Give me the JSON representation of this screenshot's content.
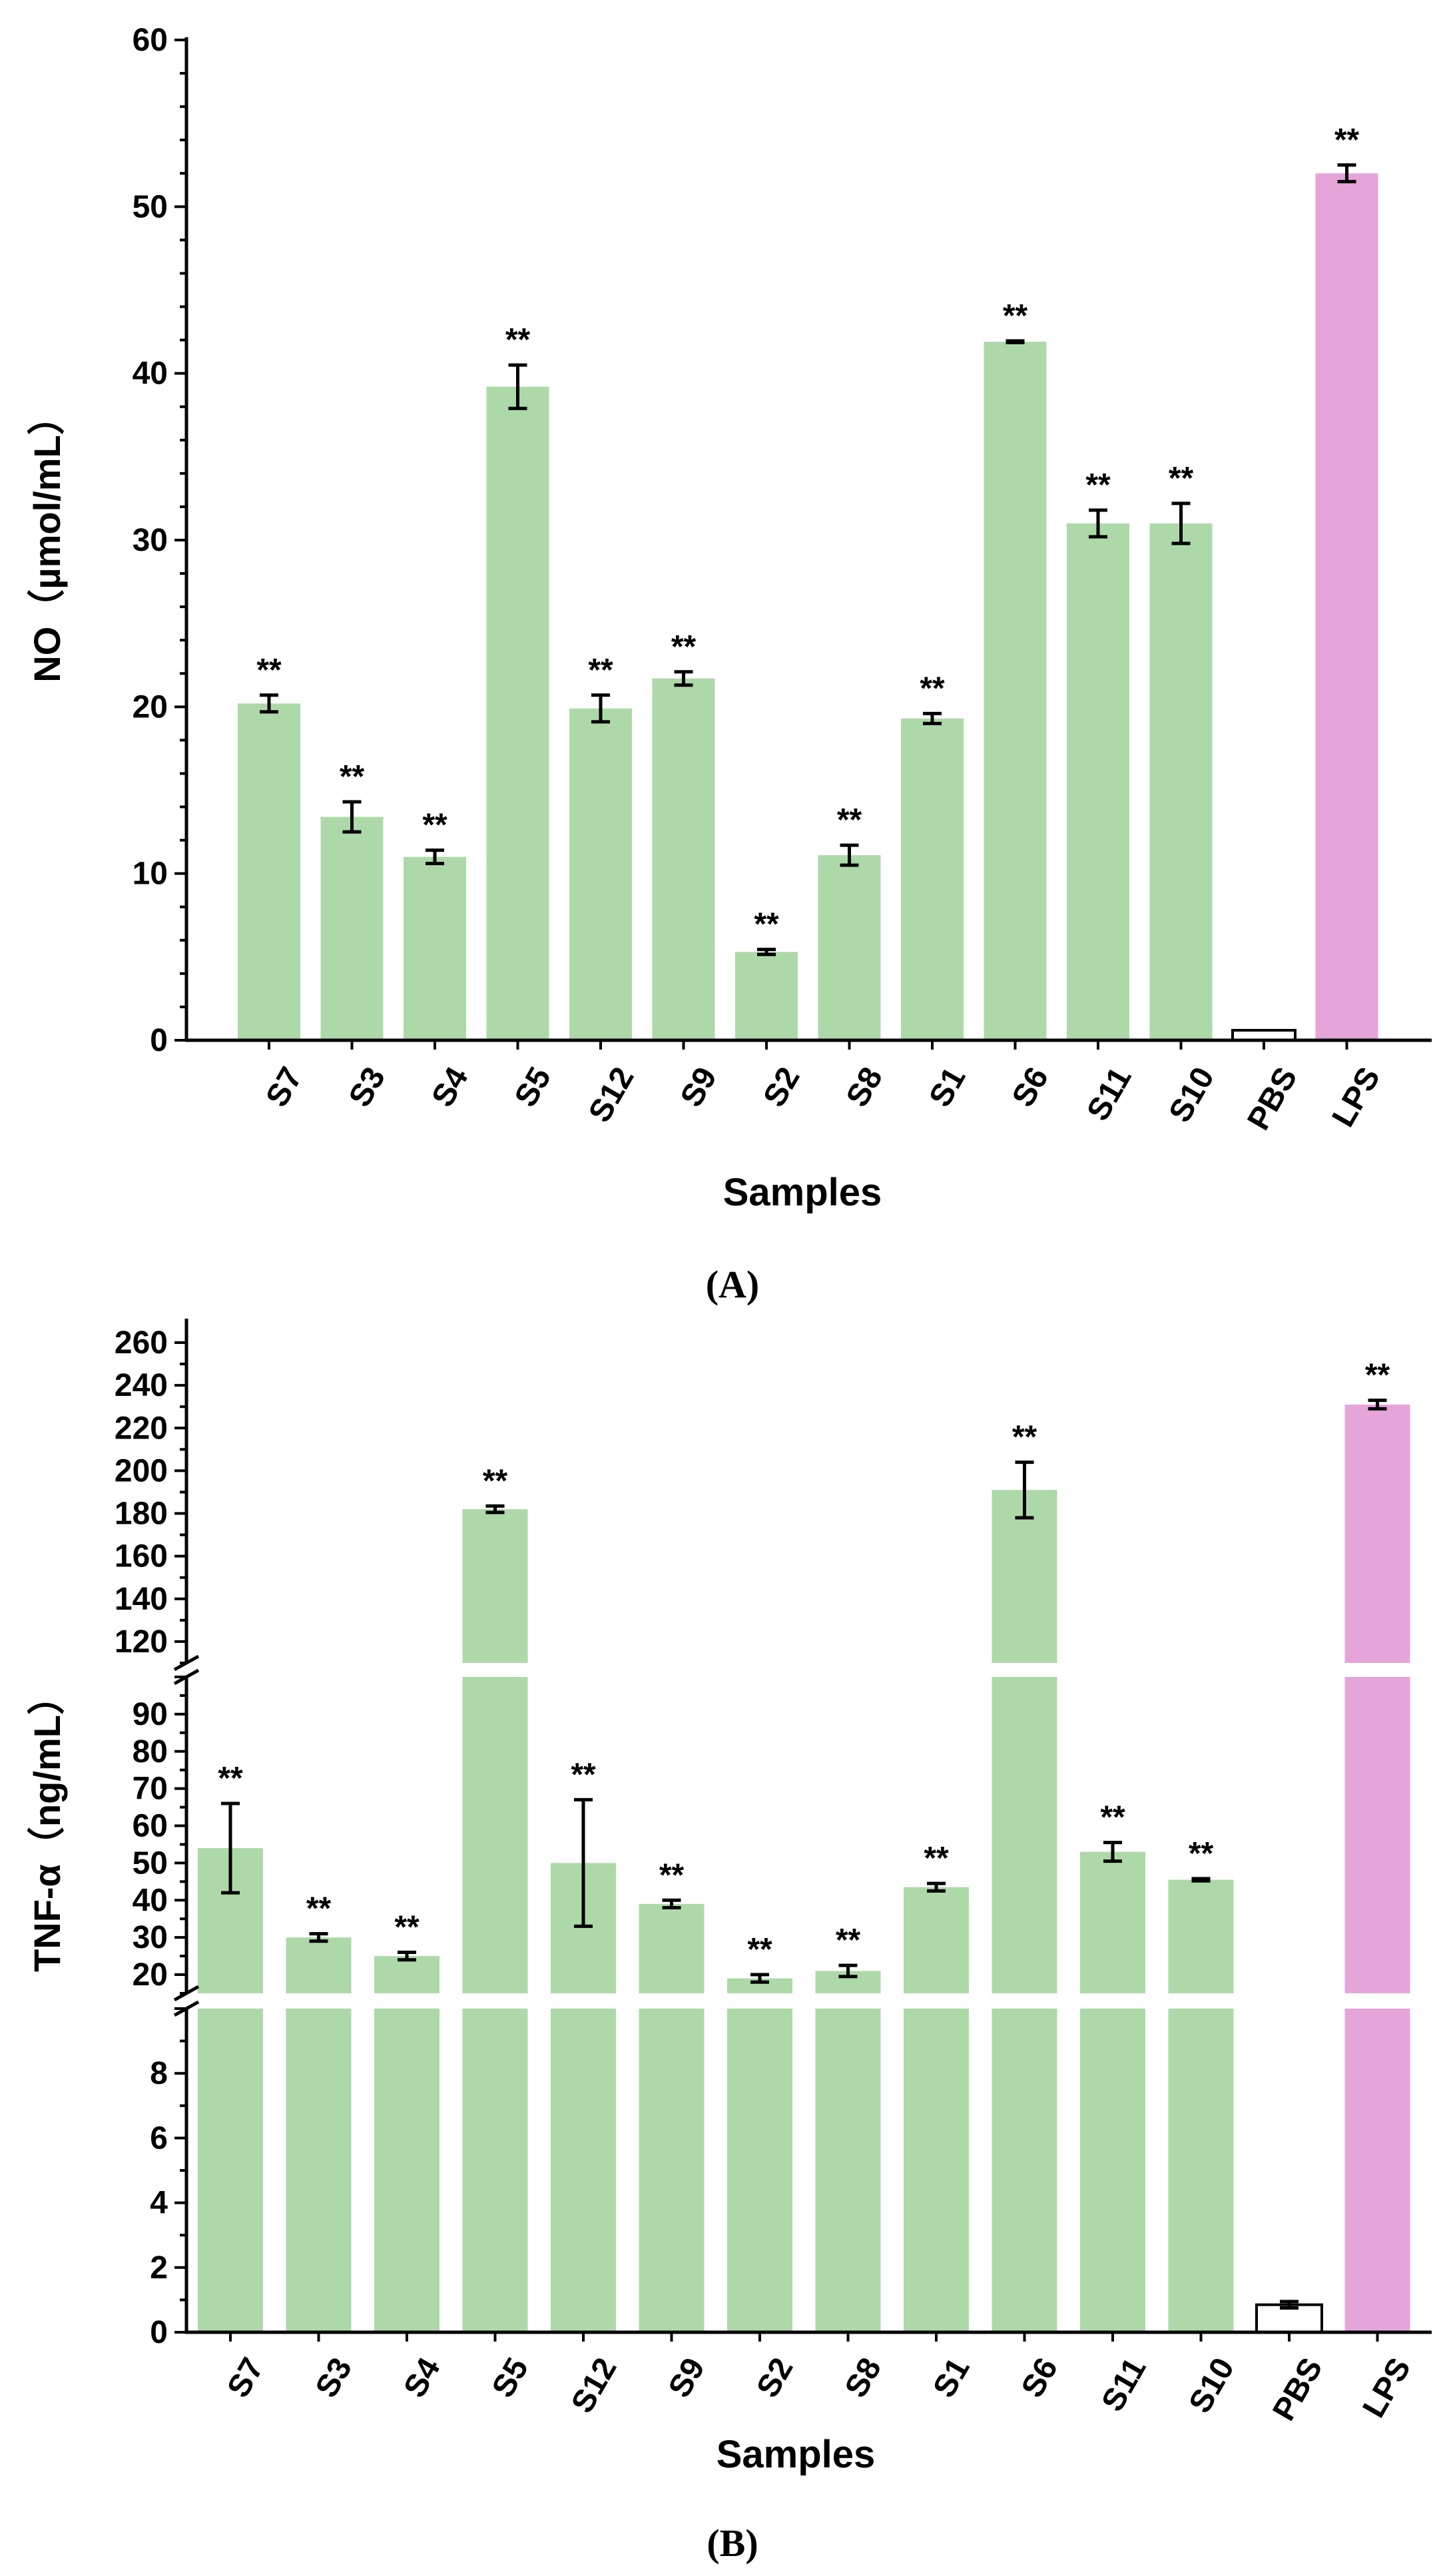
{
  "chart_data": [
    {
      "type": "bar",
      "panel_label": "(A)",
      "xlabel": "Samples",
      "ylabel": "NO（µmol/mL）",
      "ylim": [
        0,
        60
      ],
      "yticks": [
        "0",
        "10",
        "20",
        "30",
        "40",
        "50",
        "60"
      ],
      "categories": [
        "S7",
        "S3",
        "S4",
        "S5",
        "S12",
        "S9",
        "S2",
        "S8",
        "S1",
        "S6",
        "S11",
        "S10",
        "PBS",
        "LPS"
      ],
      "values": [
        20.2,
        13.4,
        11.0,
        39.2,
        19.9,
        21.7,
        5.3,
        11.1,
        19.3,
        41.9,
        31.0,
        31.0,
        0.6,
        52.0
      ],
      "errors": [
        0.5,
        0.9,
        0.4,
        1.3,
        0.8,
        0.4,
        0.15,
        0.6,
        0.3,
        0.05,
        0.8,
        1.2,
        0.0,
        0.5
      ],
      "significance": [
        "**",
        "**",
        "**",
        "**",
        "**",
        "**",
        "**",
        "**",
        "**",
        "**",
        "**",
        "**",
        "",
        "**"
      ],
      "bar_styles": [
        "sample",
        "sample",
        "sample",
        "sample",
        "sample",
        "sample",
        "sample",
        "sample",
        "sample",
        "sample",
        "sample",
        "sample",
        "control",
        "positive"
      ],
      "colors": {
        "sample": "#add9a8",
        "positive": "#e5a5d9",
        "control": "#ffffff",
        "axis": "#000000"
      }
    },
    {
      "type": "bar",
      "panel_label": "(B)",
      "xlabel": "Samples",
      "ylabel": "TNF-α（ng/mL）",
      "broken_axis": [
        {
          "range": [
            0,
            10
          ],
          "ticks": [
            "0",
            "2",
            "4",
            "6",
            "8"
          ]
        },
        {
          "range": [
            15,
            100
          ],
          "ticks": [
            "20",
            "30",
            "40",
            "50",
            "60",
            "70",
            "80",
            "90"
          ]
        },
        {
          "range": [
            110,
            265
          ],
          "ticks": [
            "120",
            "140",
            "160",
            "180",
            "200",
            "220",
            "240",
            "260"
          ]
        }
      ],
      "categories": [
        "S7",
        "S3",
        "S4",
        "S5",
        "S12",
        "S9",
        "S2",
        "S8",
        "S1",
        "S6",
        "S11",
        "S10",
        "PBS",
        "LPS"
      ],
      "values": [
        54.0,
        30.0,
        25.0,
        182.0,
        50.0,
        39.0,
        19.0,
        21.0,
        43.5,
        191.0,
        53.0,
        45.5,
        0.85,
        231.0
      ],
      "errors": [
        12.0,
        1.0,
        1.0,
        1.5,
        17.0,
        1.0,
        1.0,
        1.5,
        1.0,
        13.0,
        2.5,
        0.3,
        0.1,
        2.0
      ],
      "significance": [
        "**",
        "**",
        "**",
        "**",
        "**",
        "**",
        "**",
        "**",
        "**",
        "**",
        "**",
        "**",
        "",
        "**"
      ],
      "bar_styles": [
        "sample",
        "sample",
        "sample",
        "sample",
        "sample",
        "sample",
        "sample",
        "sample",
        "sample",
        "sample",
        "sample",
        "sample",
        "control",
        "positive"
      ],
      "colors": {
        "sample": "#add9a8",
        "positive": "#e5a5d9",
        "control": "#ffffff",
        "axis": "#000000"
      }
    }
  ]
}
